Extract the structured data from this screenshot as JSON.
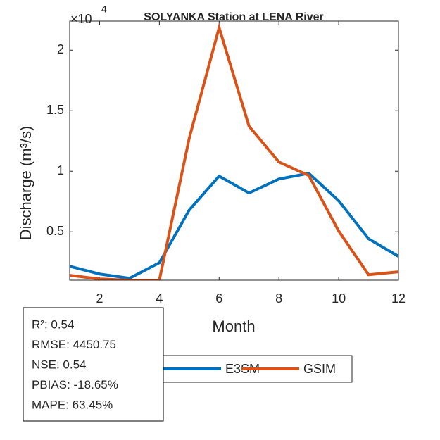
{
  "chart_data": {
    "type": "line",
    "title": "SOLYANKA  Station at  LENA  River",
    "x_label": "Month",
    "y_label": "Discharge (m³/s)",
    "y_exponent": {
      "base": "×10",
      "power": 4
    },
    "x": [
      1,
      2,
      3,
      4,
      5,
      6,
      7,
      8,
      9,
      10,
      11,
      12
    ],
    "series": [
      {
        "name": "E3SM",
        "color": "#0072BD",
        "values": [
          0.215,
          0.151,
          0.116,
          0.244,
          0.68,
          0.96,
          0.82,
          0.936,
          0.983,
          0.756,
          0.442,
          0.297
        ]
      },
      {
        "name": "GSIM",
        "color": "#D95319",
        "values": [
          0.14,
          0.11,
          0.1,
          0.1,
          1.273,
          2.186,
          1.372,
          1.076,
          0.965,
          0.506,
          0.145,
          0.169
        ]
      }
    ],
    "xlim": [
      1,
      12
    ],
    "xticks": [
      2,
      4,
      6,
      8,
      10,
      12
    ],
    "ylim": [
      0.1,
      2.24
    ],
    "yticks": [
      0.5,
      1,
      1.5,
      2
    ],
    "legend": "bottom",
    "stats": [
      "R²: 0.54",
      "RMSE: 4450.75",
      "NSE: 0.54",
      "PBIAS: -18.65%",
      "MAPE: 63.45%"
    ]
  }
}
